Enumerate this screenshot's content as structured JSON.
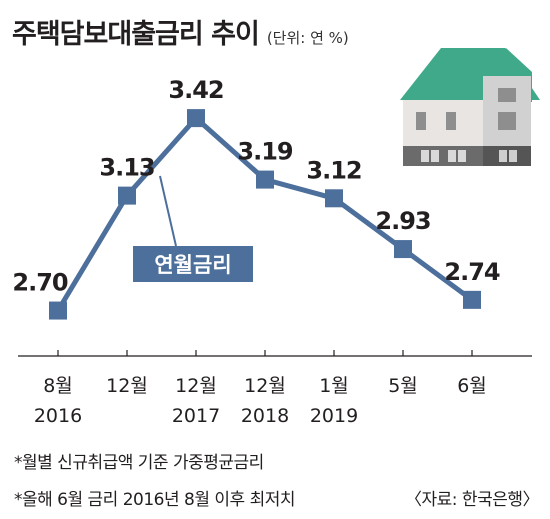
{
  "header": {
    "title": "주택담보대출금리 추이",
    "unit": "(단위: 연 %)"
  },
  "chart_data": {
    "type": "line",
    "title": "주택담보대출금리 추이",
    "unit": "(단위: 연 %)",
    "series": [
      {
        "name": "연월금리",
        "values": [
          2.7,
          3.13,
          3.42,
          3.19,
          3.12,
          2.93,
          2.74
        ]
      }
    ],
    "categories": [
      "8월 2016",
      "12월",
      "12월 2017",
      "12월 2018",
      "1월 2019",
      "5월",
      "6월"
    ],
    "value_labels": [
      "2.70",
      "3.13",
      "3.42",
      "3.19",
      "3.12",
      "2.93",
      "2.74"
    ],
    "ylim": [
      2.5,
      3.6
    ],
    "grid": false,
    "legend": "callout",
    "colors": {
      "line": "#4d6f9c",
      "marker": "#4d6f9c",
      "label_bg": "#4d6f9c",
      "axis": "#231f20"
    }
  },
  "ticks": [
    {
      "line1": "8월",
      "line2": "2016"
    },
    {
      "line1": "12월",
      "line2": ""
    },
    {
      "line1": "12월",
      "line2": "2017"
    },
    {
      "line1": "12월",
      "line2": "2018"
    },
    {
      "line1": "1월",
      "line2": "2019"
    },
    {
      "line1": "5월",
      "line2": ""
    },
    {
      "line1": "6월",
      "line2": ""
    }
  ],
  "series_label": "연월금리",
  "footnotes": {
    "note1": "*월별 신규취급액 기준 가중평균금리",
    "note2": "*올해 6월 금리 2016년 8월 이후 최저치",
    "source": "〈자료: 한국은행〉"
  },
  "illustration": {
    "icon": "house-icon",
    "roof_color": "#3fa98a",
    "wall_color": "#e6e3e0"
  }
}
